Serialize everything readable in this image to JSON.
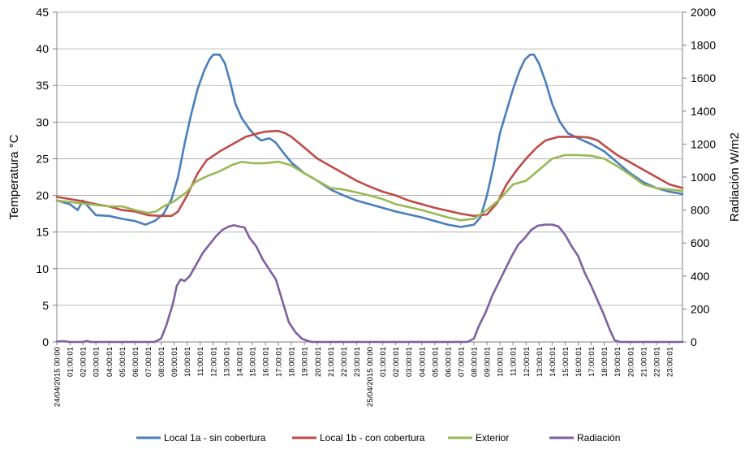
{
  "chart_data": {
    "type": "line",
    "title": "",
    "ylabel": "Temperatura °C",
    "y2label": "Radiación W/m2",
    "ylim": [
      0,
      45
    ],
    "y2lim": [
      0,
      2000
    ],
    "yticks": [
      "0",
      "5",
      "10",
      "15",
      "20",
      "25",
      "30",
      "35",
      "40",
      "45"
    ],
    "y2ticks": [
      "0",
      "200",
      "400",
      "600",
      "800",
      "1000",
      "1200",
      "1400",
      "1600",
      "1800",
      "2000"
    ],
    "x_unit": "hours since 24/04/2015 00:00",
    "xlim": [
      0,
      48
    ],
    "xticks": [
      {
        "h": 0,
        "label": "24/04/2015 00:00"
      },
      {
        "h": 1,
        "label": "01:00:01"
      },
      {
        "h": 2,
        "label": "02:00:01"
      },
      {
        "h": 3,
        "label": "03:00:01"
      },
      {
        "h": 4,
        "label": "04:00:01"
      },
      {
        "h": 5,
        "label": "05:00:01"
      },
      {
        "h": 6,
        "label": "06:00:01"
      },
      {
        "h": 7,
        "label": "07:00:01"
      },
      {
        "h": 8,
        "label": "08:00:01"
      },
      {
        "h": 9,
        "label": "09:00:01"
      },
      {
        "h": 10,
        "label": "10:00:01"
      },
      {
        "h": 11,
        "label": "11:00:01"
      },
      {
        "h": 12,
        "label": "12:00:01"
      },
      {
        "h": 13,
        "label": "13:00:01"
      },
      {
        "h": 14,
        "label": "14:00:01"
      },
      {
        "h": 15,
        "label": "15:00:01"
      },
      {
        "h": 16,
        "label": "16:00:01"
      },
      {
        "h": 17,
        "label": "17:00:01"
      },
      {
        "h": 18,
        "label": "18:00:01"
      },
      {
        "h": 19,
        "label": "19:00:01"
      },
      {
        "h": 20,
        "label": "20:00:01"
      },
      {
        "h": 21,
        "label": "21:00:01"
      },
      {
        "h": 22,
        "label": "22:00:01"
      },
      {
        "h": 23,
        "label": "23:00:01"
      },
      {
        "h": 24,
        "label": "25/04/2015 00:00"
      },
      {
        "h": 25,
        "label": "01:00:01"
      },
      {
        "h": 26,
        "label": "02:00:01"
      },
      {
        "h": 27,
        "label": "03:00:01"
      },
      {
        "h": 28,
        "label": "04:00:01"
      },
      {
        "h": 29,
        "label": "05:00:01"
      },
      {
        "h": 30,
        "label": "06:00:01"
      },
      {
        "h": 31,
        "label": "07:00:01"
      },
      {
        "h": 32,
        "label": "08:00:01"
      },
      {
        "h": 33,
        "label": "09:00:01"
      },
      {
        "h": 34,
        "label": "10:00:01"
      },
      {
        "h": 35,
        "label": "11:00:01"
      },
      {
        "h": 36,
        "label": "12:00:01"
      },
      {
        "h": 37,
        "label": "13:00:01"
      },
      {
        "h": 38,
        "label": "14:00:01"
      },
      {
        "h": 39,
        "label": "15:00:01"
      },
      {
        "h": 40,
        "label": "16:00:01"
      },
      {
        "h": 41,
        "label": "17:00:01"
      },
      {
        "h": 42,
        "label": "18:00:01"
      },
      {
        "h": 43,
        "label": "19:00:01"
      },
      {
        "h": 44,
        "label": "20:00:01"
      },
      {
        "h": 45,
        "label": "21:00:01"
      },
      {
        "h": 46,
        "label": "22:00:01"
      },
      {
        "h": 47,
        "label": "23:00:01"
      }
    ],
    "grid": true,
    "legend_position": "bottom",
    "series": [
      {
        "name": "Local 1a - sin cobertura",
        "color": "#4a7ebb",
        "axis": "left",
        "points": [
          [
            0,
            19.3
          ],
          [
            1,
            18.8
          ],
          [
            1.6,
            18.0
          ],
          [
            2,
            19.3
          ],
          [
            3,
            17.3
          ],
          [
            4,
            17.2
          ],
          [
            5,
            16.8
          ],
          [
            6,
            16.5
          ],
          [
            6.8,
            16.0
          ],
          [
            7.5,
            16.5
          ],
          [
            8.2,
            17.5
          ],
          [
            8.8,
            19.5
          ],
          [
            9.3,
            22.5
          ],
          [
            9.8,
            27.0
          ],
          [
            10.3,
            31.0
          ],
          [
            10.8,
            34.5
          ],
          [
            11.3,
            37.0
          ],
          [
            11.7,
            38.5
          ],
          [
            12.0,
            39.2
          ],
          [
            12.5,
            39.2
          ],
          [
            12.9,
            38.0
          ],
          [
            13.3,
            35.5
          ],
          [
            13.7,
            32.5
          ],
          [
            14.2,
            30.5
          ],
          [
            14.8,
            29.0
          ],
          [
            15.3,
            28.0
          ],
          [
            15.7,
            27.5
          ],
          [
            16.3,
            27.8
          ],
          [
            16.8,
            27.2
          ],
          [
            17.3,
            26.0
          ],
          [
            18,
            24.5
          ],
          [
            19,
            23.0
          ],
          [
            20,
            22.0
          ],
          [
            21,
            20.8
          ],
          [
            22,
            20.0
          ],
          [
            23,
            19.3
          ],
          [
            24,
            18.8
          ],
          [
            25,
            18.3
          ],
          [
            26,
            17.8
          ],
          [
            27,
            17.4
          ],
          [
            28,
            17.0
          ],
          [
            29,
            16.5
          ],
          [
            30,
            16.0
          ],
          [
            31,
            15.7
          ],
          [
            32,
            16.0
          ],
          [
            32.5,
            17.0
          ],
          [
            33,
            20.0
          ],
          [
            33.5,
            24.0
          ],
          [
            34,
            28.5
          ],
          [
            34.5,
            31.5
          ],
          [
            35,
            34.5
          ],
          [
            35.5,
            37.0
          ],
          [
            35.9,
            38.5
          ],
          [
            36.3,
            39.2
          ],
          [
            36.6,
            39.2
          ],
          [
            37,
            38.0
          ],
          [
            37.5,
            35.5
          ],
          [
            38,
            32.5
          ],
          [
            38.6,
            30.0
          ],
          [
            39.2,
            28.5
          ],
          [
            40,
            27.8
          ],
          [
            41,
            27.0
          ],
          [
            42,
            26.0
          ],
          [
            43,
            24.5
          ],
          [
            44,
            23.0
          ],
          [
            45,
            21.8
          ],
          [
            46,
            21.0
          ],
          [
            47,
            20.5
          ],
          [
            48,
            20.2
          ]
        ]
      },
      {
        "name": "Local 1b - con cobertura",
        "color": "#be4b48",
        "axis": "left",
        "points": [
          [
            0,
            19.8
          ],
          [
            1,
            19.5
          ],
          [
            2,
            19.2
          ],
          [
            3,
            18.8
          ],
          [
            4,
            18.5
          ],
          [
            5,
            18.0
          ],
          [
            6,
            17.8
          ],
          [
            7,
            17.3
          ],
          [
            8,
            17.2
          ],
          [
            8.8,
            17.2
          ],
          [
            9.3,
            17.8
          ],
          [
            10,
            20.0
          ],
          [
            10.8,
            23.0
          ],
          [
            11.5,
            24.8
          ],
          [
            12.5,
            26.0
          ],
          [
            13.5,
            27.0
          ],
          [
            14.5,
            28.0
          ],
          [
            15.5,
            28.5
          ],
          [
            16,
            28.7
          ],
          [
            17,
            28.8
          ],
          [
            17.5,
            28.5
          ],
          [
            18,
            28.0
          ],
          [
            19,
            26.5
          ],
          [
            20,
            25.0
          ],
          [
            21,
            24.0
          ],
          [
            22,
            23.0
          ],
          [
            23,
            22.0
          ],
          [
            24,
            21.2
          ],
          [
            25,
            20.5
          ],
          [
            26,
            20.0
          ],
          [
            27,
            19.3
          ],
          [
            28,
            18.8
          ],
          [
            29,
            18.3
          ],
          [
            30,
            17.9
          ],
          [
            31,
            17.5
          ],
          [
            32,
            17.2
          ],
          [
            33,
            17.4
          ],
          [
            33.8,
            19.0
          ],
          [
            34.5,
            21.5
          ],
          [
            35.3,
            23.5
          ],
          [
            36,
            25.0
          ],
          [
            36.8,
            26.5
          ],
          [
            37.5,
            27.5
          ],
          [
            38.5,
            28.0
          ],
          [
            40,
            28.0
          ],
          [
            40.8,
            27.9
          ],
          [
            41.5,
            27.5
          ],
          [
            42,
            26.8
          ],
          [
            43,
            25.5
          ],
          [
            44,
            24.5
          ],
          [
            45,
            23.5
          ],
          [
            46,
            22.5
          ],
          [
            47,
            21.5
          ],
          [
            48,
            21.0
          ]
        ]
      },
      {
        "name": "Exterior",
        "color": "#98b954",
        "axis": "left",
        "points": [
          [
            0,
            19.3
          ],
          [
            1,
            19.1
          ],
          [
            2,
            18.9
          ],
          [
            3,
            18.7
          ],
          [
            4,
            18.5
          ],
          [
            5,
            18.5
          ],
          [
            6,
            18.0
          ],
          [
            7,
            17.6
          ],
          [
            7.6,
            17.8
          ],
          [
            8.2,
            18.5
          ],
          [
            9,
            19.2
          ],
          [
            10,
            20.5
          ],
          [
            10.6,
            21.8
          ],
          [
            11.5,
            22.6
          ],
          [
            12.5,
            23.3
          ],
          [
            13.5,
            24.2
          ],
          [
            14.2,
            24.6
          ],
          [
            15,
            24.4
          ],
          [
            16,
            24.4
          ],
          [
            17,
            24.6
          ],
          [
            18,
            24.1
          ],
          [
            19,
            23.0
          ],
          [
            20,
            22.0
          ],
          [
            21,
            21.0
          ],
          [
            22,
            20.8
          ],
          [
            23,
            20.4
          ],
          [
            24,
            20.0
          ],
          [
            25,
            19.5
          ],
          [
            26,
            18.8
          ],
          [
            27,
            18.4
          ],
          [
            28,
            18.0
          ],
          [
            29,
            17.5
          ],
          [
            30,
            17.0
          ],
          [
            31,
            16.6
          ],
          [
            32,
            16.8
          ],
          [
            33,
            18.0
          ],
          [
            34,
            19.5
          ],
          [
            35,
            21.5
          ],
          [
            36,
            22.0
          ],
          [
            37,
            23.5
          ],
          [
            38,
            25.0
          ],
          [
            39,
            25.5
          ],
          [
            40,
            25.5
          ],
          [
            41,
            25.4
          ],
          [
            42,
            25.0
          ],
          [
            43,
            24.0
          ],
          [
            44,
            22.8
          ],
          [
            45,
            21.5
          ],
          [
            46,
            21.0
          ],
          [
            47,
            20.8
          ],
          [
            48,
            20.6
          ]
        ]
      },
      {
        "name": "Radiación",
        "color": "#7d60a0",
        "axis": "right",
        "points": [
          [
            0,
            3
          ],
          [
            0.5,
            5
          ],
          [
            1,
            0
          ],
          [
            2,
            0
          ],
          [
            2.3,
            6
          ],
          [
            2.6,
            0
          ],
          [
            7.5,
            0
          ],
          [
            8,
            20
          ],
          [
            8.4,
            100
          ],
          [
            8.9,
            230
          ],
          [
            9.2,
            340
          ],
          [
            9.5,
            380
          ],
          [
            9.8,
            370
          ],
          [
            10.2,
            400
          ],
          [
            10.7,
            470
          ],
          [
            11.2,
            540
          ],
          [
            11.7,
            590
          ],
          [
            12.2,
            640
          ],
          [
            12.7,
            680
          ],
          [
            13.2,
            700
          ],
          [
            13.6,
            708
          ],
          [
            14.0,
            700
          ],
          [
            14.4,
            695
          ],
          [
            14.8,
            630
          ],
          [
            15.3,
            580
          ],
          [
            15.8,
            500
          ],
          [
            16.3,
            440
          ],
          [
            16.8,
            380
          ],
          [
            17.3,
            250
          ],
          [
            17.8,
            120
          ],
          [
            18.3,
            60
          ],
          [
            18.8,
            20
          ],
          [
            19.3,
            5
          ],
          [
            19.6,
            0
          ],
          [
            31.5,
            0
          ],
          [
            32,
            20
          ],
          [
            32.4,
            100
          ],
          [
            32.9,
            180
          ],
          [
            33.4,
            280
          ],
          [
            33.9,
            360
          ],
          [
            34.4,
            440
          ],
          [
            34.9,
            520
          ],
          [
            35.4,
            590
          ],
          [
            35.9,
            630
          ],
          [
            36.4,
            680
          ],
          [
            36.9,
            705
          ],
          [
            37.5,
            712
          ],
          [
            38.0,
            712
          ],
          [
            38.5,
            700
          ],
          [
            39,
            650
          ],
          [
            39.5,
            580
          ],
          [
            40,
            520
          ],
          [
            40.5,
            420
          ],
          [
            41,
            340
          ],
          [
            41.5,
            250
          ],
          [
            42,
            160
          ],
          [
            42.4,
            80
          ],
          [
            42.8,
            10
          ],
          [
            43.2,
            0
          ],
          [
            48,
            0
          ]
        ]
      }
    ]
  }
}
